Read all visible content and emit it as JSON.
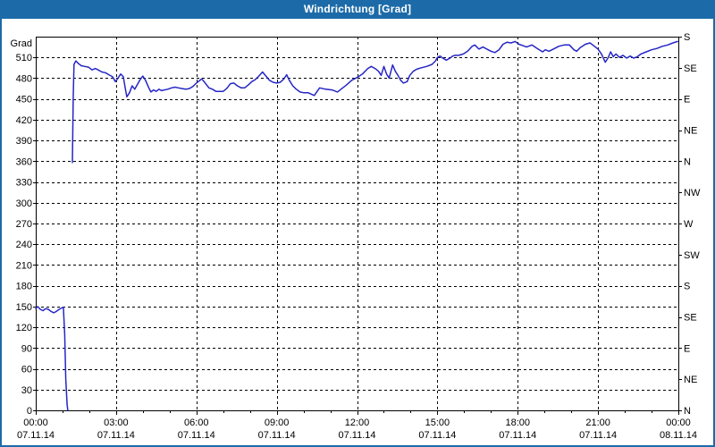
{
  "window": {
    "title": "Windrichtung [Grad]",
    "titlebar_color": "#1c6ba8",
    "border_color": "#1c6ba8",
    "background": "#ffffff"
  },
  "chart_data": {
    "type": "line",
    "title": "Windrichtung [Grad]",
    "ylabel": "Grad",
    "xlabel": "",
    "ylim": [
      0,
      540
    ],
    "xlim_hours": [
      0,
      24
    ],
    "grid": "dashed",
    "legend": "none",
    "line_color": "#2626c6",
    "y_ticks_left": [
      0,
      30,
      60,
      90,
      120,
      150,
      180,
      210,
      240,
      270,
      300,
      330,
      360,
      390,
      420,
      450,
      480,
      510
    ],
    "right_axis_labels": [
      {
        "deg": 540,
        "label": "S"
      },
      {
        "deg": 495,
        "label": "SE"
      },
      {
        "deg": 450,
        "label": "E"
      },
      {
        "deg": 405,
        "label": "NE"
      },
      {
        "deg": 360,
        "label": "N"
      },
      {
        "deg": 315,
        "label": "NW"
      },
      {
        "deg": 270,
        "label": "W"
      },
      {
        "deg": 225,
        "label": "SW"
      },
      {
        "deg": 180,
        "label": "S"
      },
      {
        "deg": 135,
        "label": "SE"
      },
      {
        "deg": 90,
        "label": "E"
      },
      {
        "deg": 45,
        "label": "NE"
      },
      {
        "deg": 0,
        "label": "N"
      }
    ],
    "minor_x_tick_hours": 1,
    "x_ticks": [
      {
        "hour": 0,
        "time": "00:00",
        "date": "07.11.14"
      },
      {
        "hour": 3,
        "time": "03:00",
        "date": "07.11.14"
      },
      {
        "hour": 6,
        "time": "06:00",
        "date": "07.11.14"
      },
      {
        "hour": 9,
        "time": "09:00",
        "date": "07.11.14"
      },
      {
        "hour": 12,
        "time": "12:00",
        "date": "07.11.14"
      },
      {
        "hour": 15,
        "time": "15:00",
        "date": "07.11.14"
      },
      {
        "hour": 18,
        "time": "18:00",
        "date": "07.11.14"
      },
      {
        "hour": 21,
        "time": "21:00",
        "date": "07.11.14"
      },
      {
        "hour": 24,
        "time": "00:00",
        "date": "08.11.14"
      }
    ],
    "series": [
      {
        "name": "Windrichtung",
        "unit": "Grad",
        "segments": [
          [
            [
              0.0,
              147
            ],
            [
              0.07,
              150
            ],
            [
              0.17,
              146
            ],
            [
              0.27,
              144
            ],
            [
              0.37,
              147
            ],
            [
              0.47,
              146
            ],
            [
              0.57,
              143
            ],
            [
              0.67,
              141
            ],
            [
              0.77,
              143
            ],
            [
              0.87,
              146
            ],
            [
              0.97,
              148
            ],
            [
              1.03,
              149
            ],
            [
              1.08,
              110
            ],
            [
              1.12,
              45
            ],
            [
              1.17,
              8
            ],
            [
              1.2,
              0
            ]
          ],
          [
            [
              1.37,
              358
            ],
            [
              1.4,
              450
            ],
            [
              1.43,
              500
            ],
            [
              1.5,
              505
            ],
            [
              1.6,
              501
            ],
            [
              1.7,
              498
            ],
            [
              1.83,
              497
            ],
            [
              1.97,
              496
            ],
            [
              2.1,
              492
            ],
            [
              2.23,
              494
            ],
            [
              2.33,
              492
            ],
            [
              2.47,
              489
            ],
            [
              2.6,
              488
            ],
            [
              2.73,
              485
            ],
            [
              2.87,
              482
            ],
            [
              2.97,
              475
            ],
            [
              3.07,
              480
            ],
            [
              3.17,
              486
            ],
            [
              3.27,
              482
            ],
            [
              3.33,
              468
            ],
            [
              3.4,
              453
            ],
            [
              3.5,
              459
            ],
            [
              3.6,
              469
            ],
            [
              3.7,
              464
            ],
            [
              3.8,
              471
            ],
            [
              3.9,
              478
            ],
            [
              4.0,
              483
            ],
            [
              4.1,
              477
            ],
            [
              4.2,
              468
            ],
            [
              4.3,
              460
            ],
            [
              4.4,
              463
            ],
            [
              4.5,
              461
            ],
            [
              4.6,
              464
            ],
            [
              4.7,
              462
            ],
            [
              4.8,
              463
            ],
            [
              4.93,
              464
            ],
            [
              5.07,
              466
            ],
            [
              5.2,
              467
            ],
            [
              5.33,
              466
            ],
            [
              5.47,
              465
            ],
            [
              5.6,
              464
            ],
            [
              5.73,
              465
            ],
            [
              5.87,
              468
            ],
            [
              6.0,
              473
            ],
            [
              6.2,
              479
            ],
            [
              6.33,
              473
            ],
            [
              6.47,
              466
            ],
            [
              6.6,
              464
            ],
            [
              6.73,
              461
            ],
            [
              6.87,
              461
            ],
            [
              7.0,
              461
            ],
            [
              7.13,
              465
            ],
            [
              7.27,
              472
            ],
            [
              7.4,
              473
            ],
            [
              7.53,
              469
            ],
            [
              7.67,
              466
            ],
            [
              7.8,
              466
            ],
            [
              7.93,
              470
            ],
            [
              8.07,
              475
            ],
            [
              8.2,
              478
            ],
            [
              8.33,
              483
            ],
            [
              8.47,
              489
            ],
            [
              8.6,
              483
            ],
            [
              8.73,
              477
            ],
            [
              8.87,
              474
            ],
            [
              9.0,
              473
            ],
            [
              9.13,
              474
            ],
            [
              9.27,
              479
            ],
            [
              9.37,
              485
            ],
            [
              9.47,
              477
            ],
            [
              9.6,
              469
            ],
            [
              9.73,
              464
            ],
            [
              9.87,
              460
            ],
            [
              10.0,
              459
            ],
            [
              10.17,
              459
            ],
            [
              10.4,
              455
            ],
            [
              10.6,
              466
            ],
            [
              10.83,
              464
            ],
            [
              11.07,
              463
            ],
            [
              11.27,
              460
            ],
            [
              11.4,
              464
            ],
            [
              11.6,
              470
            ],
            [
              11.8,
              477
            ],
            [
              12.0,
              481
            ],
            [
              12.2,
              486
            ],
            [
              12.4,
              494
            ],
            [
              12.53,
              497
            ],
            [
              12.67,
              494
            ],
            [
              12.8,
              490
            ],
            [
              12.9,
              484
            ],
            [
              13.0,
              497
            ],
            [
              13.1,
              486
            ],
            [
              13.2,
              480
            ],
            [
              13.33,
              499
            ],
            [
              13.43,
              490
            ],
            [
              13.53,
              484
            ],
            [
              13.63,
              477
            ],
            [
              13.73,
              473
            ],
            [
              13.87,
              475
            ],
            [
              13.97,
              484
            ],
            [
              14.1,
              490
            ],
            [
              14.23,
              493
            ],
            [
              14.4,
              495
            ],
            [
              14.6,
              497
            ],
            [
              14.8,
              500
            ],
            [
              14.93,
              505
            ],
            [
              15.0,
              510
            ],
            [
              15.1,
              512
            ],
            [
              15.2,
              509
            ],
            [
              15.33,
              506
            ],
            [
              15.47,
              509
            ],
            [
              15.57,
              512
            ],
            [
              15.67,
              513
            ],
            [
              15.8,
              513
            ],
            [
              15.97,
              515
            ],
            [
              16.13,
              519
            ],
            [
              16.3,
              526
            ],
            [
              16.4,
              528
            ],
            [
              16.55,
              522
            ],
            [
              16.7,
              525
            ],
            [
              16.85,
              522
            ],
            [
              17.0,
              519
            ],
            [
              17.15,
              517
            ],
            [
              17.3,
              521
            ],
            [
              17.45,
              529
            ],
            [
              17.6,
              532
            ],
            [
              17.75,
              531
            ],
            [
              17.9,
              533
            ],
            [
              18.05,
              529
            ],
            [
              18.2,
              527
            ],
            [
              18.33,
              525
            ],
            [
              18.53,
              528
            ],
            [
              18.73,
              523
            ],
            [
              18.93,
              518
            ],
            [
              19.03,
              521
            ],
            [
              19.17,
              519
            ],
            [
              19.33,
              522
            ],
            [
              19.53,
              526
            ],
            [
              19.73,
              528
            ],
            [
              19.93,
              528
            ],
            [
              20.1,
              521
            ],
            [
              20.2,
              519
            ],
            [
              20.33,
              524
            ],
            [
              20.53,
              529
            ],
            [
              20.7,
              531
            ],
            [
              20.87,
              526
            ],
            [
              21.0,
              522
            ],
            [
              21.13,
              515
            ],
            [
              21.27,
              503
            ],
            [
              21.37,
              509
            ],
            [
              21.47,
              518
            ],
            [
              21.57,
              511
            ],
            [
              21.67,
              515
            ],
            [
              21.8,
              510
            ],
            [
              21.93,
              513
            ],
            [
              22.07,
              509
            ],
            [
              22.2,
              512
            ],
            [
              22.33,
              509
            ],
            [
              22.47,
              511
            ],
            [
              22.6,
              515
            ],
            [
              22.8,
              518
            ],
            [
              23.0,
              521
            ],
            [
              23.2,
              523
            ],
            [
              23.4,
              526
            ],
            [
              23.6,
              528
            ],
            [
              23.8,
              531
            ],
            [
              23.97,
              533
            ]
          ]
        ]
      }
    ]
  }
}
